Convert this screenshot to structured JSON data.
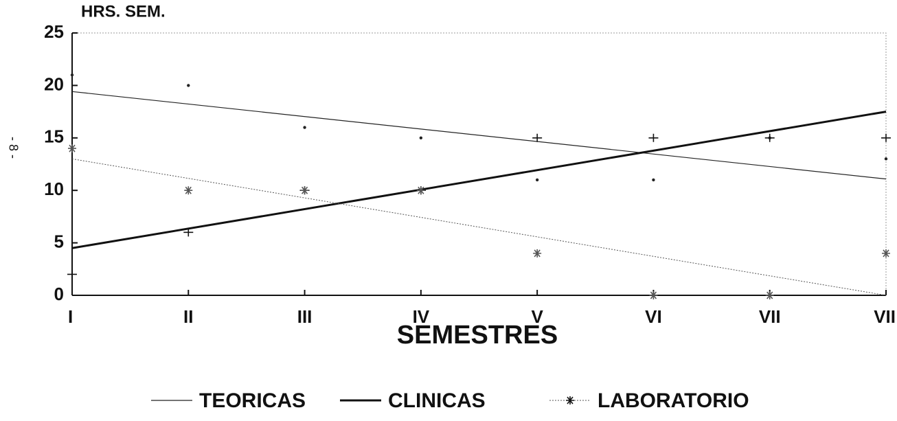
{
  "chart_data": {
    "type": "line",
    "title": "HRS. SEM.",
    "x_label": "SEMESTRES",
    "side_note": "- 8 -",
    "categories": [
      "I",
      "II",
      "III",
      "IV",
      "V",
      "VI",
      "VII",
      "VII"
    ],
    "ylim": [
      0,
      25
    ],
    "yticks": [
      0,
      5,
      10,
      15,
      20,
      25
    ],
    "trend_lines": true,
    "series": [
      {
        "name": "TEORICAS",
        "color": "#222",
        "marker": "dot",
        "values": [
          21,
          20,
          16,
          15,
          11,
          11,
          15,
          13
        ]
      },
      {
        "name": "CLINICAS",
        "color": "#111",
        "marker": "plus",
        "values": [
          2,
          6,
          10,
          10,
          15,
          15,
          15,
          15
        ]
      },
      {
        "name": "LABORATORIO",
        "color": "#555",
        "marker": "star",
        "values": [
          14,
          10,
          10,
          10,
          4,
          0,
          0,
          4
        ]
      }
    ]
  }
}
